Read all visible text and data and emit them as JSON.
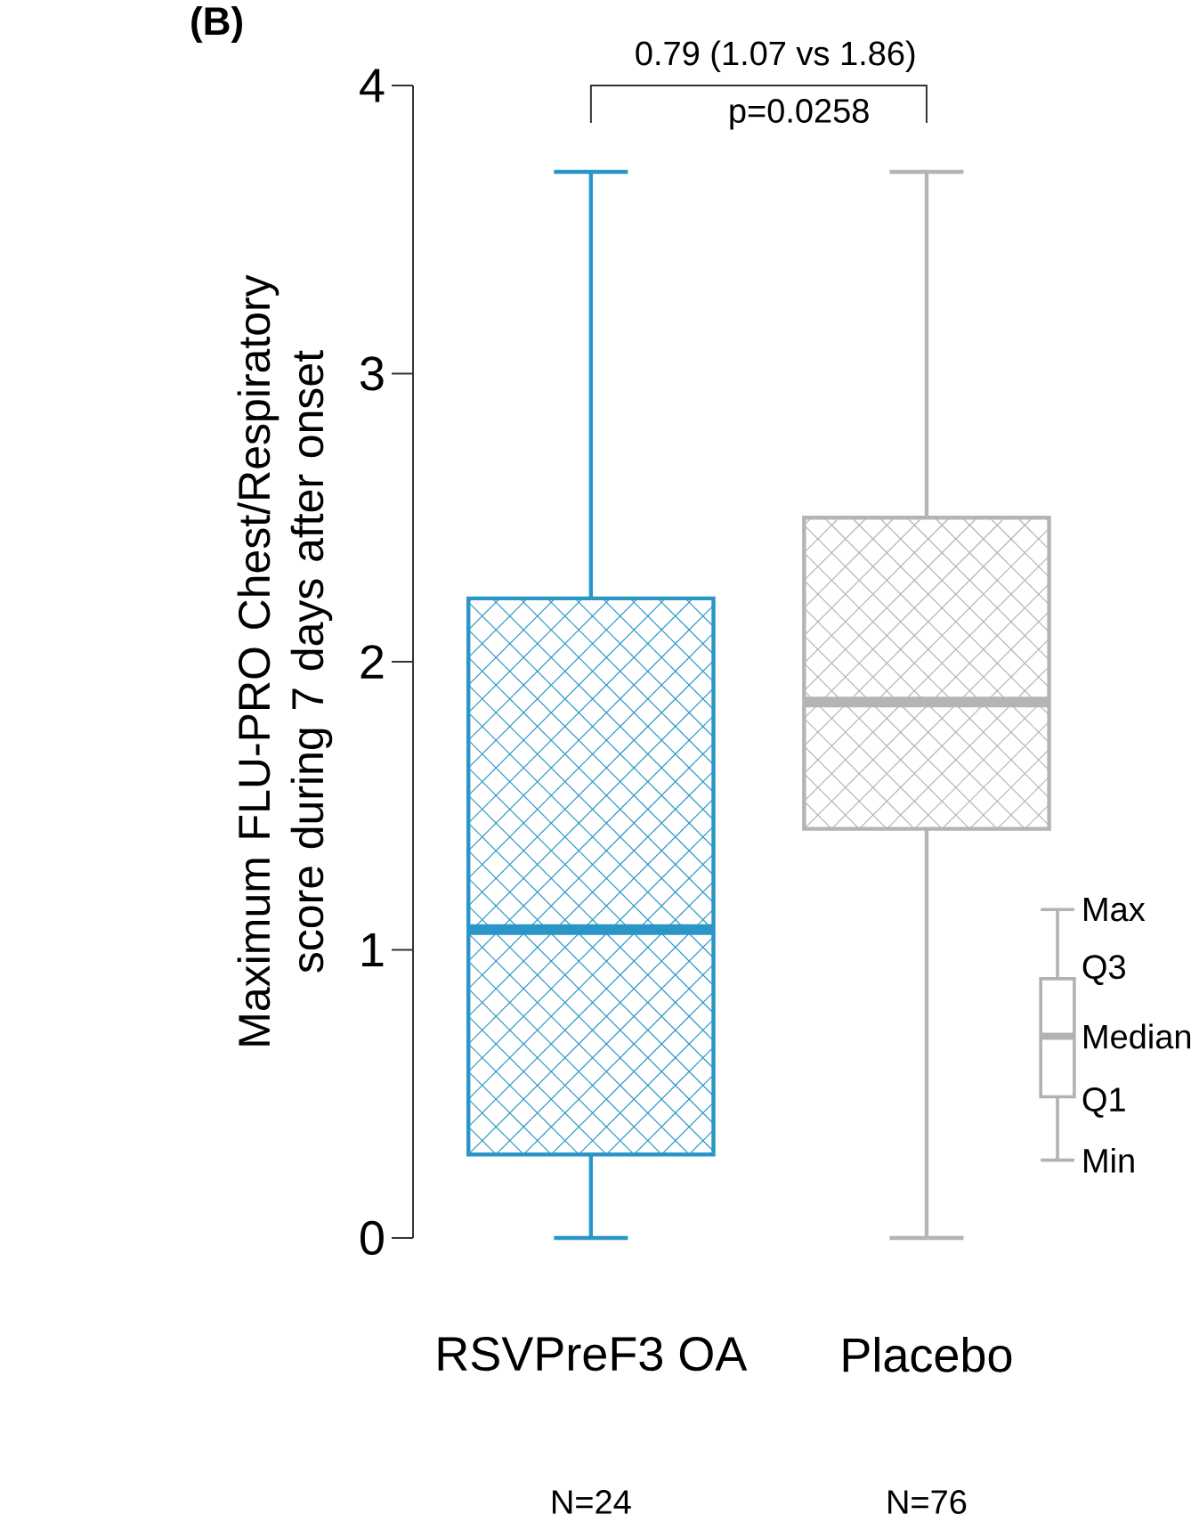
{
  "chart_data": {
    "type": "box",
    "ylabel": "Maximum FLU-PRO Chest/Respiratory score during 7 days after onset",
    "categories": [
      "RSVPreF3 OA",
      "Placebo"
    ],
    "colors": [
      "#2a96c8",
      "#b4b4b4"
    ],
    "boxes": [
      {
        "low": 0,
        "q1": 0.29,
        "median": 1.07,
        "q3": 2.22,
        "high": 3.7
      },
      {
        "low": 0,
        "q1": 1.42,
        "median": 1.86,
        "q3": 2.5,
        "high": 3.7
      }
    ],
    "ylim": [
      0,
      4
    ],
    "yticks": [
      0,
      1,
      2,
      3,
      4
    ],
    "annotations": [
      "(B)",
      "0.79 (1.07 vs 1.86)",
      "p=0.0258",
      "N=24",
      "N=76",
      "Max",
      "Q3",
      "Median",
      "Q1",
      "Min"
    ]
  }
}
